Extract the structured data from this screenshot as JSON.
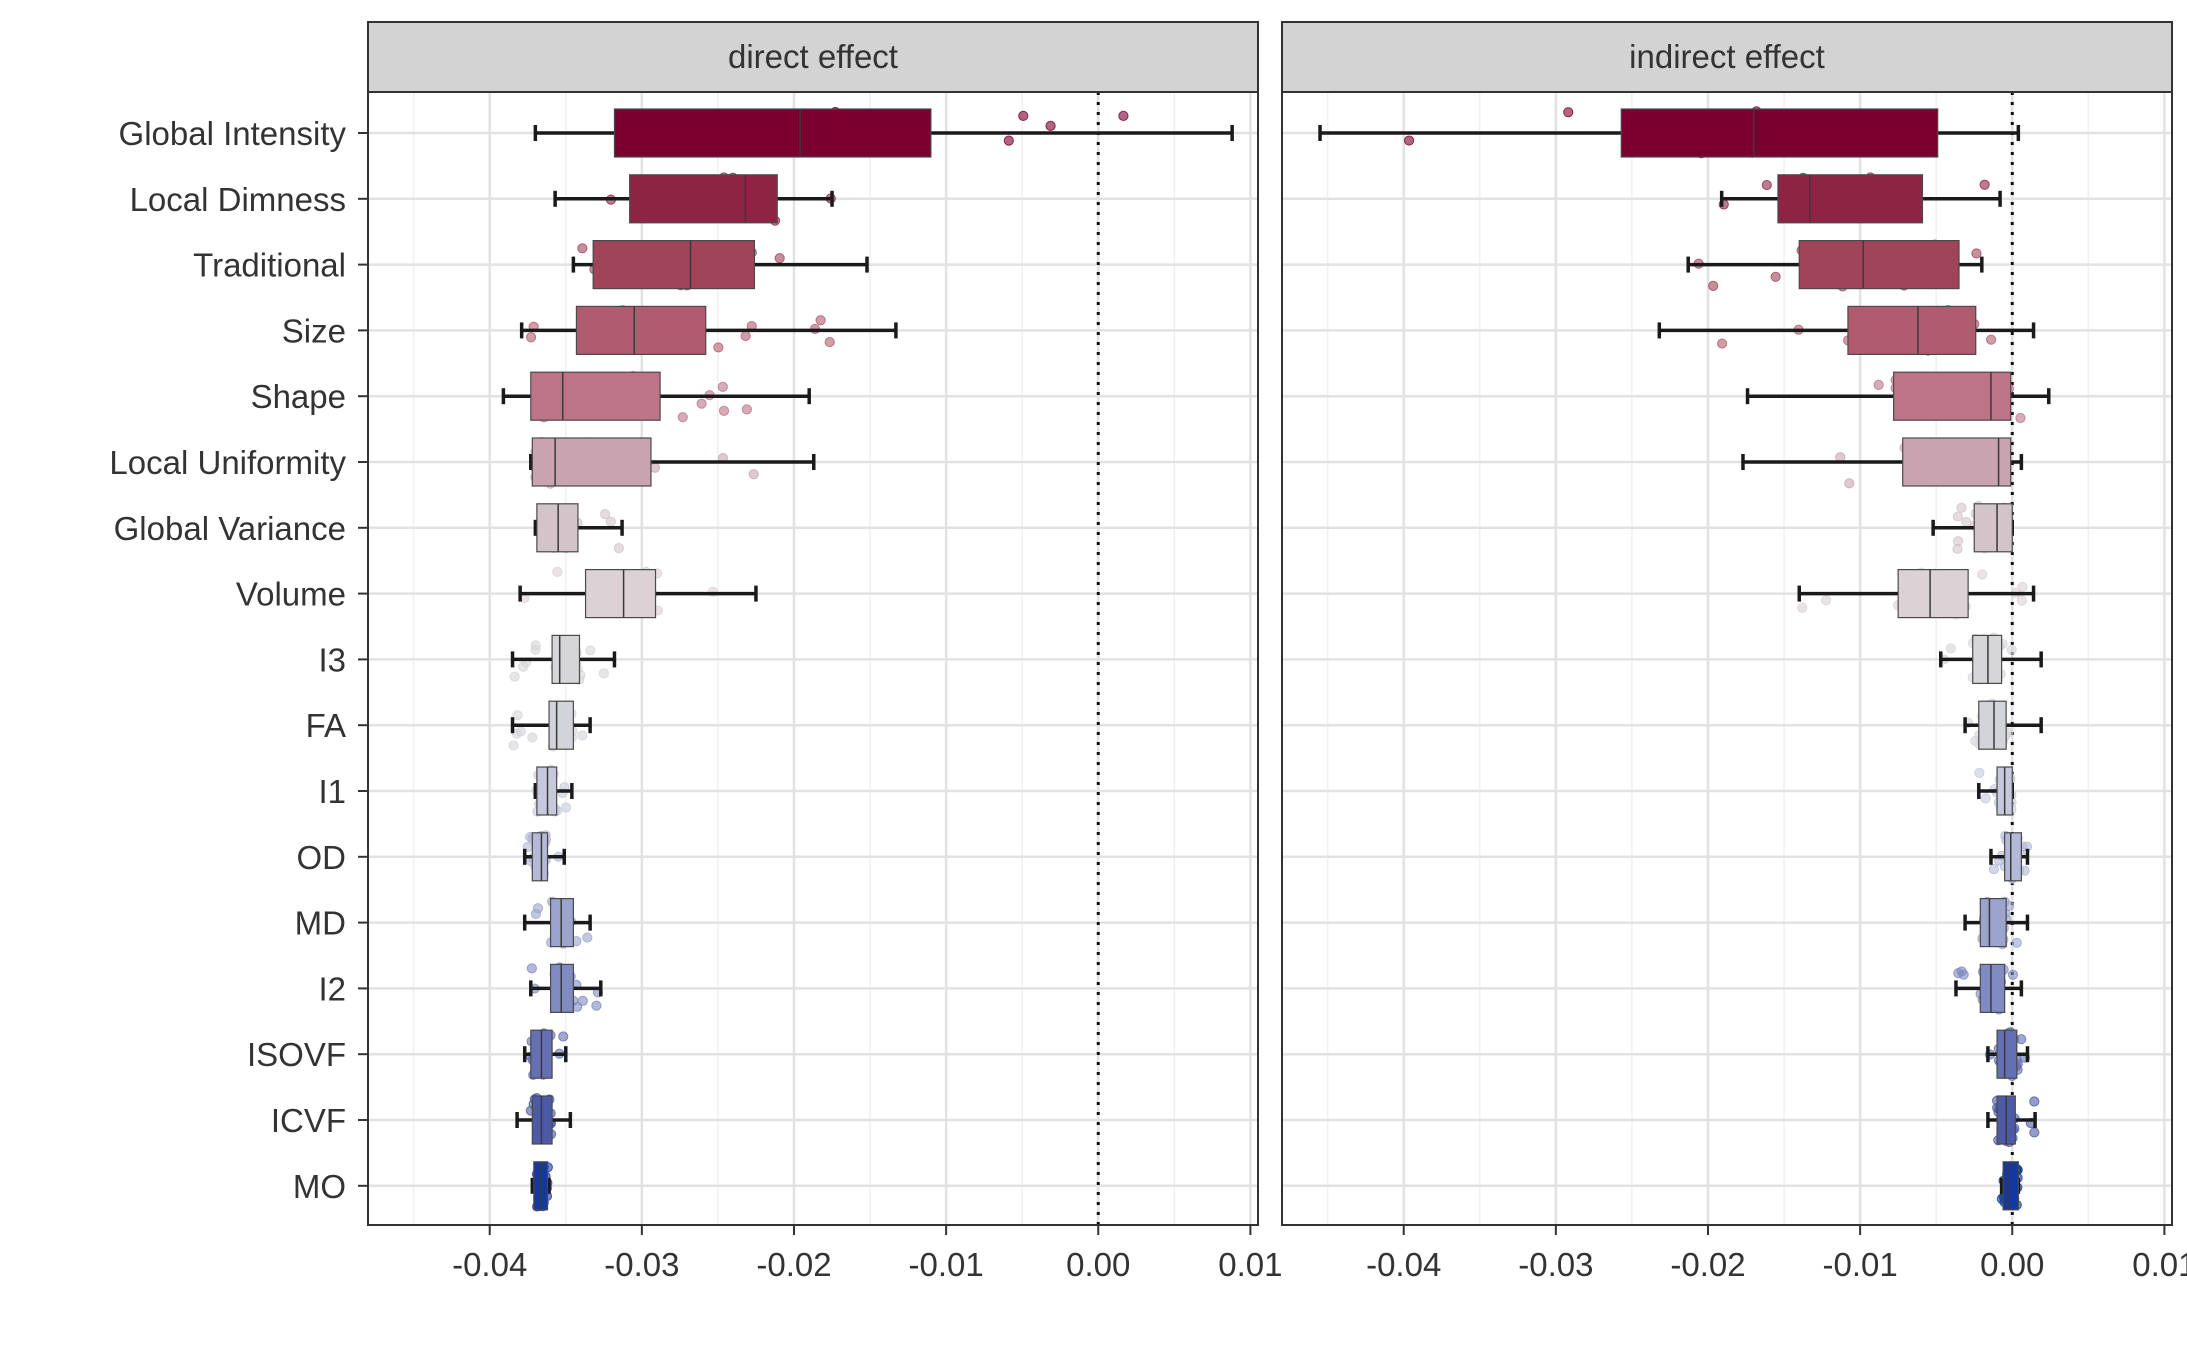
{
  "chart_data": {
    "type": "boxplot",
    "panels": [
      {
        "title": "direct effect",
        "stats": [
          {
            "category": "Global Intensity",
            "whisker_low": -0.037,
            "q1": -0.0318,
            "median": -0.0196,
            "q3": -0.011,
            "whisker_high": 0.0088
          },
          {
            "category": "Local Dimness",
            "whisker_low": -0.0357,
            "q1": -0.0308,
            "median": -0.0232,
            "q3": -0.0211,
            "whisker_high": -0.0175
          },
          {
            "category": "Traditional",
            "whisker_low": -0.0345,
            "q1": -0.0332,
            "median": -0.0268,
            "q3": -0.0226,
            "whisker_high": -0.0152
          },
          {
            "category": "Size",
            "whisker_low": -0.0379,
            "q1": -0.0343,
            "median": -0.0305,
            "q3": -0.0258,
            "whisker_high": -0.0133
          },
          {
            "category": "Shape",
            "whisker_low": -0.0391,
            "q1": -0.0373,
            "median": -0.0352,
            "q3": -0.0288,
            "whisker_high": -0.019
          },
          {
            "category": "Local Uniformity",
            "whisker_low": -0.0373,
            "q1": -0.0372,
            "median": -0.0357,
            "q3": -0.0294,
            "whisker_high": -0.0187
          },
          {
            "category": "Global Variance",
            "whisker_low": -0.037,
            "q1": -0.0369,
            "median": -0.0355,
            "q3": -0.0342,
            "whisker_high": -0.0313
          },
          {
            "category": "Volume",
            "whisker_low": -0.038,
            "q1": -0.0337,
            "median": -0.0312,
            "q3": -0.0291,
            "whisker_high": -0.0225
          },
          {
            "category": "I3",
            "whisker_low": -0.0385,
            "q1": -0.0359,
            "median": -0.0354,
            "q3": -0.0341,
            "whisker_high": -0.0318
          },
          {
            "category": "FA",
            "whisker_low": -0.0385,
            "q1": -0.0361,
            "median": -0.0356,
            "q3": -0.0345,
            "whisker_high": -0.0334
          },
          {
            "category": "I1",
            "whisker_low": -0.037,
            "q1": -0.0369,
            "median": -0.0362,
            "q3": -0.0356,
            "whisker_high": -0.0346
          },
          {
            "category": "OD",
            "whisker_low": -0.0377,
            "q1": -0.0372,
            "median": -0.0366,
            "q3": -0.0362,
            "whisker_high": -0.0351
          },
          {
            "category": "MD",
            "whisker_low": -0.0377,
            "q1": -0.036,
            "median": -0.0353,
            "q3": -0.0345,
            "whisker_high": -0.0334
          },
          {
            "category": "I2",
            "whisker_low": -0.0373,
            "q1": -0.036,
            "median": -0.0353,
            "q3": -0.0345,
            "whisker_high": -0.0327
          },
          {
            "category": "ISOVF",
            "whisker_low": -0.0377,
            "q1": -0.0373,
            "median": -0.0366,
            "q3": -0.0359,
            "whisker_high": -0.035
          },
          {
            "category": "ICVF",
            "whisker_low": -0.0382,
            "q1": -0.0372,
            "median": -0.0366,
            "q3": -0.0359,
            "whisker_high": -0.0347
          },
          {
            "category": "MO",
            "whisker_low": -0.0372,
            "q1": -0.0371,
            "median": -0.0367,
            "q3": -0.0362,
            "whisker_high": -0.0361
          }
        ]
      },
      {
        "title": "indirect effect",
        "stats": [
          {
            "category": "Global Intensity",
            "whisker_low": -0.0455,
            "q1": -0.0257,
            "median": -0.017,
            "q3": -0.0049,
            "whisker_high": 0.0004
          },
          {
            "category": "Local Dimness",
            "whisker_low": -0.0191,
            "q1": -0.0154,
            "median": -0.0133,
            "q3": -0.0059,
            "whisker_high": -0.0008
          },
          {
            "category": "Traditional",
            "whisker_low": -0.0213,
            "q1": -0.014,
            "median": -0.0098,
            "q3": -0.0035,
            "whisker_high": -0.002
          },
          {
            "category": "Size",
            "whisker_low": -0.0232,
            "q1": -0.0108,
            "median": -0.0062,
            "q3": -0.0024,
            "whisker_high": 0.0014
          },
          {
            "category": "Shape",
            "whisker_low": -0.0174,
            "q1": -0.0078,
            "median": -0.0014,
            "q3": -0.0001,
            "whisker_high": 0.0024
          },
          {
            "category": "Local Uniformity",
            "whisker_low": -0.0177,
            "q1": -0.0072,
            "median": -0.0009,
            "q3": -0.0001,
            "whisker_high": 0.0006
          },
          {
            "category": "Global Variance",
            "whisker_low": -0.0052,
            "q1": -0.0025,
            "median": -0.001,
            "q3": 0.0,
            "whisker_high": 0.0
          },
          {
            "category": "Volume",
            "whisker_low": -0.014,
            "q1": -0.0075,
            "median": -0.0054,
            "q3": -0.0029,
            "whisker_high": 0.0014
          },
          {
            "category": "I3",
            "whisker_low": -0.0047,
            "q1": -0.0026,
            "median": -0.0016,
            "q3": -0.0007,
            "whisker_high": 0.0019
          },
          {
            "category": "FA",
            "whisker_low": -0.0031,
            "q1": -0.0022,
            "median": -0.0012,
            "q3": -0.0004,
            "whisker_high": 0.0019
          },
          {
            "category": "I1",
            "whisker_low": -0.0022,
            "q1": -0.001,
            "median": -0.0005,
            "q3": 0.0,
            "whisker_high": 0.0
          },
          {
            "category": "OD",
            "whisker_low": -0.0014,
            "q1": -0.0005,
            "median": -0.0001,
            "q3": 0.0006,
            "whisker_high": 0.001
          },
          {
            "category": "MD",
            "whisker_low": -0.0031,
            "q1": -0.0021,
            "median": -0.0015,
            "q3": -0.0004,
            "whisker_high": 0.001
          },
          {
            "category": "I2",
            "whisker_low": -0.0037,
            "q1": -0.0021,
            "median": -0.0014,
            "q3": -0.0005,
            "whisker_high": 0.0006
          },
          {
            "category": "ISOVF",
            "whisker_low": -0.0016,
            "q1": -0.001,
            "median": -0.0005,
            "q3": 0.0003,
            "whisker_high": 0.001
          },
          {
            "category": "ICVF",
            "whisker_low": -0.0016,
            "q1": -0.001,
            "median": -0.0004,
            "q3": 0.0002,
            "whisker_high": 0.0015
          },
          {
            "category": "MO",
            "whisker_low": -0.0007,
            "q1": -0.0006,
            "median": -0.0002,
            "q3": 0.0004,
            "whisker_high": 0.0004
          }
        ]
      }
    ],
    "categories": [
      "Global Intensity",
      "Local Dimness",
      "Traditional",
      "Size",
      "Shape",
      "Local Uniformity",
      "Global Variance",
      "Volume",
      "I3",
      "FA",
      "I1",
      "OD",
      "MD",
      "I2",
      "ISOVF",
      "ICVF",
      "MO"
    ],
    "xlim": [
      -0.048,
      0.0105
    ],
    "x_ticks": [
      -0.04,
      -0.03,
      -0.02,
      -0.01,
      0.0,
      0.01
    ],
    "x_tick_labels": [
      "-0.04",
      "-0.03",
      "-0.02",
      "-0.01",
      "0.00",
      "0.01"
    ],
    "reference_line_x": 0.0,
    "grid": true,
    "category_colors": [
      "#7a0030",
      "#8e2443",
      "#9f4459",
      "#b05b70",
      "#bd7487",
      "#c9a3b0",
      "#d2c4c9",
      "#dcd1d5",
      "#d6d6d8",
      "#d3d4da",
      "#c6c9dc",
      "#b3b9d6",
      "#9ba4cc",
      "#7f8bc1",
      "#6470b3",
      "#4c5aa8",
      "#14399c"
    ],
    "panel_strip_color": "#d3d3d3"
  }
}
